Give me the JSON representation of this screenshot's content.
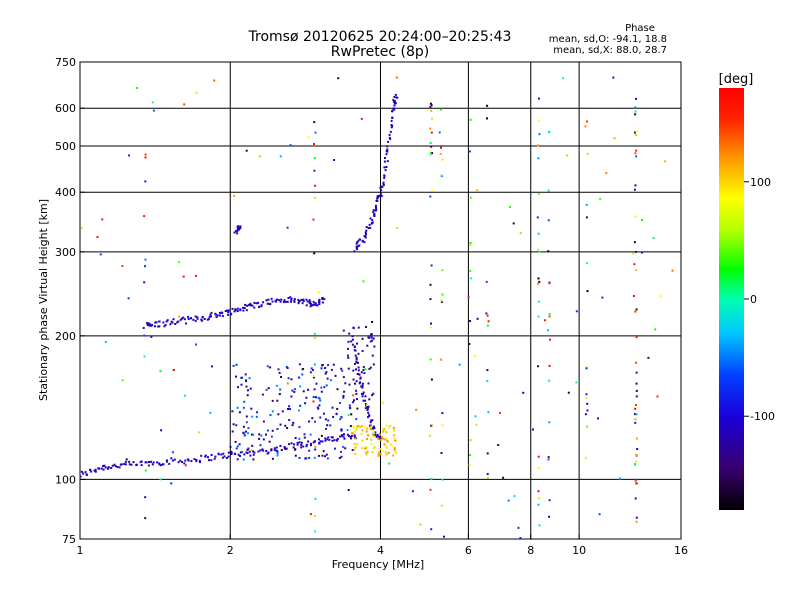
{
  "chart_data": {
    "type": "scatter",
    "title": "Tromsø 20120625 20:24:00–20:25:43",
    "subtitle": "RwPretec (8p)",
    "xlabel": "Frequency [MHz]",
    "ylabel": "Stationary phase Virtual Height [km]",
    "x_scale": "log2",
    "y_scale": "log",
    "xlim": [
      1,
      16
    ],
    "ylim": [
      75,
      750
    ],
    "x_ticks": [
      1,
      2,
      4,
      6,
      8,
      10,
      16
    ],
    "x_tick_labels": [
      "1",
      "2",
      "4",
      "6",
      "8",
      "10",
      "16"
    ],
    "y_ticks": [
      75,
      100,
      200,
      300,
      400,
      500,
      600,
      750
    ],
    "y_tick_labels": [
      "75",
      "100",
      "200",
      "300",
      "400",
      "500",
      "600",
      "750"
    ],
    "grid": true,
    "phase_stats": {
      "title": "Phase",
      "line_o": "mean, sd,O: -94.1, 18.8",
      "line_x": "mean, sd,X:  88.0, 28.7"
    },
    "colorbar": {
      "label": "[deg]",
      "range": [
        -180,
        180
      ],
      "ticks": [
        100,
        0,
        -100
      ],
      "tick_labels": [
        "100",
        "0",
        "-100"
      ]
    },
    "traces": [
      {
        "points": [
          [
            1.0,
            102
          ],
          [
            1.1,
            106
          ],
          [
            1.2,
            107
          ],
          [
            1.35,
            108
          ],
          [
            1.5,
            109
          ],
          [
            1.7,
            110
          ],
          [
            1.9,
            112
          ],
          [
            2.1,
            113
          ],
          [
            2.4,
            115
          ],
          [
            2.7,
            118
          ],
          [
            3.0,
            120
          ],
          [
            3.3,
            122
          ],
          [
            3.6,
            124
          ]
        ],
        "phase": -110
      },
      {
        "points": [
          [
            1.35,
            210
          ],
          [
            1.45,
            212
          ],
          [
            1.6,
            215
          ],
          [
            1.75,
            218
          ],
          [
            1.9,
            222
          ],
          [
            2.05,
            226
          ],
          [
            2.2,
            231
          ],
          [
            2.4,
            236
          ],
          [
            2.6,
            238
          ],
          [
            2.8,
            236
          ],
          [
            2.95,
            232
          ],
          [
            3.1,
            240
          ]
        ],
        "phase": -110
      },
      {
        "points": [
          [
            2.05,
            332
          ],
          [
            2.1,
            336
          ]
        ],
        "phase": -110
      },
      {
        "points": [
          [
            3.5,
            200
          ],
          [
            3.6,
            170
          ],
          [
            3.7,
            150
          ],
          [
            3.8,
            135
          ],
          [
            3.9,
            125
          ],
          [
            4.0,
            122
          ]
        ],
        "phase": -115
      },
      {
        "points": [
          [
            3.55,
            305
          ],
          [
            3.7,
            320
          ],
          [
            3.85,
            350
          ],
          [
            3.95,
            380
          ],
          [
            4.05,
            420
          ],
          [
            4.15,
            500
          ],
          [
            4.25,
            600
          ],
          [
            4.3,
            640
          ]
        ],
        "phase": -110
      }
    ],
    "bands": [
      {
        "x": [
          2.0,
          3.6
        ],
        "y": [
          110,
          175
        ],
        "count": 220,
        "phase": -100,
        "spread": 60
      },
      {
        "x": [
          3.5,
          4.3
        ],
        "y": [
          112,
          130
        ],
        "count": 90,
        "phase": 100,
        "spread": 25
      },
      {
        "x": [
          3.4,
          3.9
        ],
        "y": [
          140,
          210
        ],
        "count": 45,
        "phase": -115,
        "spread": 30
      }
    ],
    "columns": [
      {
        "f": 1.35,
        "count": 10,
        "y": [
          80,
          520
        ]
      },
      {
        "f": 2.95,
        "count": 20,
        "y": [
          75,
          650
        ]
      },
      {
        "f": 5.05,
        "count": 25,
        "y": [
          75,
          650
        ]
      },
      {
        "f": 5.3,
        "count": 15,
        "y": [
          80,
          640
        ]
      },
      {
        "f": 6.05,
        "count": 12,
        "y": [
          80,
          600
        ]
      },
      {
        "f": 6.55,
        "count": 12,
        "y": [
          100,
          660
        ]
      },
      {
        "f": 8.3,
        "count": 25,
        "y": [
          75,
          640
        ]
      },
      {
        "f": 8.7,
        "count": 18,
        "y": [
          75,
          600
        ]
      },
      {
        "f": 10.35,
        "count": 15,
        "y": [
          90,
          650
        ]
      },
      {
        "f": 13.0,
        "count": 45,
        "y": [
          75,
          660
        ]
      }
    ],
    "scatter_noise": {
      "count": 120,
      "x": [
        1.0,
        16.0
      ],
      "y": [
        75,
        700
      ]
    }
  }
}
